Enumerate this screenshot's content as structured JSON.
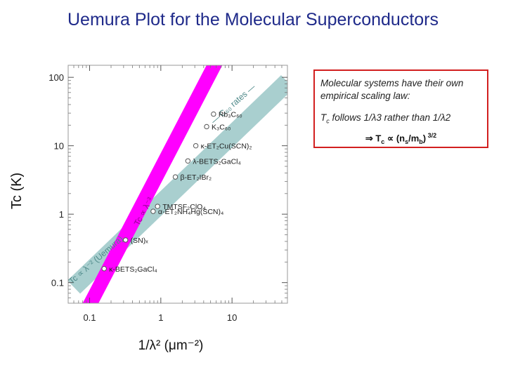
{
  "slide": {
    "title": "Uemura Plot for the Molecular Superconductors"
  },
  "note": {
    "intro": "Molecular systems have their own empirical scaling law:",
    "follows_prefix": "T",
    "follows_sub": "c",
    "follows_text": " follows 1/λ3 rather than 1/λ2",
    "relation_prefix": "⇒ T",
    "relation_sub_c": "c",
    "relation_mid": " ∝ (n",
    "relation_sub_s": "s",
    "relation_mid2": "/m",
    "relation_sub_b": "b",
    "relation_end": ")",
    "relation_exp": " 3/2"
  },
  "chart_data": {
    "type": "scatter",
    "title": "",
    "xlabel": "1/λ² (μm⁻²)",
    "ylabel": "Tc (K)",
    "xscale": "log",
    "yscale": "log",
    "xlim": [
      0.05,
      60
    ],
    "ylim": [
      0.05,
      150
    ],
    "x_ticks": [
      0.1,
      1,
      10
    ],
    "x_tick_labels": [
      "0.1",
      "1",
      "10"
    ],
    "y_ticks": [
      0.1,
      1,
      10,
      100
    ],
    "y_tick_labels": [
      "0.1",
      "1",
      "10",
      "100"
    ],
    "grid": false,
    "bands": [
      {
        "name": "Tc ∝ λ⁻² (Uemura)",
        "color": "#a9cfcf",
        "points": [
          [
            0.06,
            0.086
          ],
          [
            60,
            86
          ]
        ]
      },
      {
        "name": "Tc ∝ λ⁻³",
        "color": "#ff00ff",
        "points": [
          [
            0.08,
            0.03
          ],
          [
            8,
            300
          ]
        ]
      }
    ],
    "band_labels": [
      {
        "text": "Tc ∝ λ⁻² (Uemura)",
        "color": "#4f8a8a",
        "anchor": [
          0.13,
          0.2
        ]
      },
      {
        "text": "Tc ∝ λ⁻³",
        "color": "#9a009a",
        "anchor": [
          0.62,
          1.05
        ]
      },
      {
        "text": "— C₆₀ rates —",
        "color": "#4f8a8a",
        "anchor": [
          11,
          38
        ]
      }
    ],
    "points": [
      {
        "label": "κ-BETS₂GaCl₄",
        "x": 0.16,
        "y": 0.16
      },
      {
        "label": "(SN)ₓ",
        "x": 0.32,
        "y": 0.42
      },
      {
        "label": "α-ET₂NH₄Hg(SCN)₄",
        "x": 0.78,
        "y": 1.1
      },
      {
        "label": "TMTSF₂ClO₄",
        "x": 0.9,
        "y": 1.3
      },
      {
        "label": "β-ET₂IBr₂",
        "x": 1.6,
        "y": 3.5
      },
      {
        "label": "λ-BETS₂GaCl₄",
        "x": 2.4,
        "y": 6.0
      },
      {
        "label": "κ-ET₂Cu(SCN)₂",
        "x": 3.1,
        "y": 10
      },
      {
        "label": "K₃C₆₀",
        "x": 4.4,
        "y": 19
      },
      {
        "label": "Rb₃C₆₀",
        "x": 5.5,
        "y": 29
      }
    ]
  }
}
